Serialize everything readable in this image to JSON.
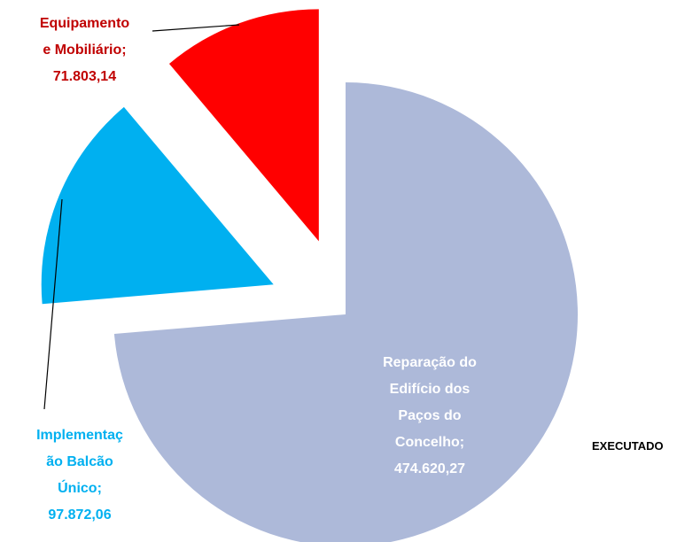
{
  "chart_data": {
    "type": "pie",
    "series_name": "EXECUTADO",
    "categories": [
      "Reparação do Edifício dos Paços do Concelho",
      "Implementação Balcão Único",
      "Equipamento e Mobiliário"
    ],
    "values": [
      474620.27,
      97872.06,
      71803.14
    ],
    "value_labels": [
      "474.620,27",
      "97.872,06",
      "71.803,14"
    ],
    "separator": ";",
    "colors": [
      "#adb9d9",
      "#00b0f0",
      "#ff0000"
    ],
    "label_colors": [
      "#ffffff",
      "#00b0f0",
      "#c00000"
    ]
  }
}
